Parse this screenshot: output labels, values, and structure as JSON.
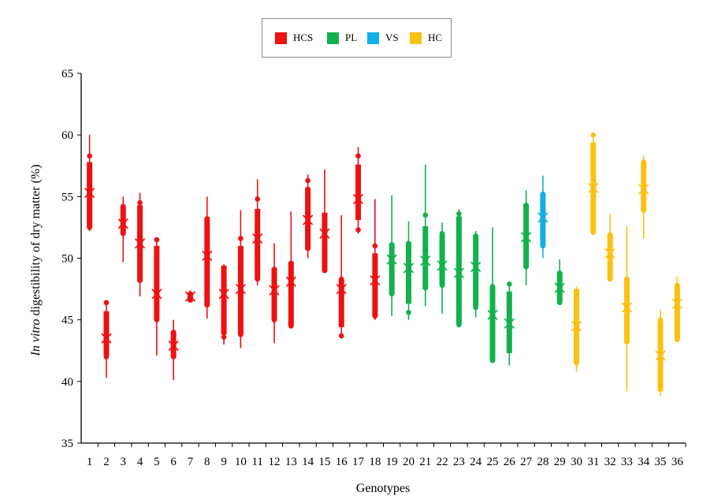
{
  "chart_data": {
    "type": "box",
    "xlabel": "Genotypes",
    "ylabel_italic": "In vitro",
    "ylabel_rest": " digestibility of dry matter (%)",
    "ylim": [
      35,
      65
    ],
    "yticks": [
      35,
      40,
      45,
      50,
      55,
      60,
      65
    ],
    "grid": false,
    "legend_position": "top-center",
    "groups": [
      {
        "name": "HCS",
        "color": "#ee1111"
      },
      {
        "name": "PL",
        "color": "#12b14c"
      },
      {
        "name": "VS",
        "color": "#11aee8"
      },
      {
        "name": "HC",
        "color": "#fbc112"
      }
    ],
    "genotypes": [
      {
        "label": "1",
        "group": "HCS",
        "min": 52.2,
        "q1": 52.5,
        "q3": 57.8,
        "max": 60.0,
        "mean": 55.3,
        "points": [
          52.5,
          54.2,
          55.8,
          58.3
        ]
      },
      {
        "label": "2",
        "group": "HCS",
        "min": 40.3,
        "q1": 42.1,
        "q3": 45.7,
        "max": 46.4,
        "mean": 43.5,
        "points": [
          42.0,
          43.2,
          44.6,
          46.4
        ]
      },
      {
        "label": "3",
        "group": "HCS",
        "min": 49.7,
        "q1": 52.0,
        "q3": 54.2,
        "max": 55.0,
        "mean": 52.8,
        "points": [
          52.0,
          52.6,
          53.6,
          54.2
        ]
      },
      {
        "label": "4",
        "group": "HCS",
        "min": 46.9,
        "q1": 48.1,
        "q3": 54.3,
        "max": 55.3,
        "mean": 51.2,
        "points": [
          48.2,
          50.1,
          52.1,
          53.3,
          54.5
        ]
      },
      {
        "label": "5",
        "group": "HCS",
        "min": 42.1,
        "q1": 45.0,
        "q3": 51.0,
        "max": 51.6,
        "mean": 47.1,
        "points": [
          45.0,
          45.7,
          49.5,
          51.5
        ]
      },
      {
        "label": "6",
        "group": "HCS",
        "min": 40.1,
        "q1": 42.0,
        "q3": 44.0,
        "max": 45.0,
        "mean": 42.9,
        "points": [
          42.0,
          43.3,
          44.0
        ]
      },
      {
        "label": "7",
        "group": "HCS",
        "min": 46.4,
        "q1": 46.5,
        "q3": 47.2,
        "max": 47.4,
        "mean": 46.9,
        "points": [
          46.6,
          47.1
        ]
      },
      {
        "label": "8",
        "group": "HCS",
        "min": 45.1,
        "q1": 46.1,
        "q3": 53.3,
        "max": 55.0,
        "mean": 50.2,
        "points": [
          46.2,
          49.8,
          52.0,
          53.2
        ]
      },
      {
        "label": "9",
        "group": "HCS",
        "min": 43.0,
        "q1": 43.8,
        "q3": 49.4,
        "max": 49.5,
        "mean": 47.1,
        "points": [
          43.6,
          45.4,
          48.1,
          49.2
        ]
      },
      {
        "label": "10",
        "group": "HCS",
        "min": 42.7,
        "q1": 43.8,
        "q3": 51.0,
        "max": 53.9,
        "mean": 47.5,
        "points": [
          43.8,
          45.2,
          46.5,
          48.8,
          51.6
        ]
      },
      {
        "label": "11",
        "group": "HCS",
        "min": 47.8,
        "q1": 48.3,
        "q3": 54.0,
        "max": 56.4,
        "mean": 51.6,
        "points": [
          48.3,
          50.3,
          51.1,
          52.7,
          54.8
        ]
      },
      {
        "label": "12",
        "group": "HCS",
        "min": 43.1,
        "q1": 45.0,
        "q3": 49.2,
        "max": 51.2,
        "mean": 47.4,
        "points": [
          45.0,
          46.8,
          48.7,
          49.1
        ]
      },
      {
        "label": "13",
        "group": "HCS",
        "min": 44.3,
        "q1": 44.5,
        "q3": 49.7,
        "max": 53.8,
        "mean": 48.1,
        "points": [
          44.5,
          46.3,
          48.1,
          49.6
        ]
      },
      {
        "label": "14",
        "group": "HCS",
        "min": 50.0,
        "q1": 50.7,
        "q3": 55.7,
        "max": 56.8,
        "mean": 53.1,
        "points": [
          50.8,
          52.4,
          54.0,
          55.6,
          56.3
        ]
      },
      {
        "label": "15",
        "group": "HCS",
        "min": 48.8,
        "q1": 49.0,
        "q3": 53.7,
        "max": 57.2,
        "mean": 52.0,
        "points": [
          49.0,
          50.6,
          52.4,
          53.5
        ]
      },
      {
        "label": "16",
        "group": "HCS",
        "min": 43.5,
        "q1": 44.4,
        "q3": 48.3,
        "max": 53.5,
        "mean": 47.5,
        "points": [
          43.7,
          46.5,
          48.3
        ]
      },
      {
        "label": "17",
        "group": "HCS",
        "min": 52.0,
        "q1": 53.1,
        "q3": 57.6,
        "max": 59.0,
        "mean": 54.8,
        "points": [
          52.3,
          53.8,
          55.1,
          58.3
        ]
      },
      {
        "label": "18",
        "group": "HCS",
        "min": 45.0,
        "q1": 45.3,
        "q3": 50.4,
        "max": 54.8,
        "mean": 48.2,
        "points": [
          45.3,
          46.4,
          48.7,
          51.0
        ]
      },
      {
        "label": "19",
        "group": "PL",
        "min": 45.3,
        "q1": 47.1,
        "q3": 51.2,
        "max": 55.1,
        "mean": 49.9,
        "points": [
          47.1,
          48.0,
          50.1,
          51.1
        ]
      },
      {
        "label": "20",
        "group": "PL",
        "min": 45.0,
        "q1": 46.3,
        "q3": 51.3,
        "max": 53.0,
        "mean": 49.2,
        "points": [
          45.6,
          48.3,
          50.3,
          51.2
        ]
      },
      {
        "label": "21",
        "group": "PL",
        "min": 46.1,
        "q1": 47.5,
        "q3": 52.6,
        "max": 57.6,
        "mean": 49.8,
        "points": [
          47.6,
          48.1,
          50.5,
          53.5
        ]
      },
      {
        "label": "22",
        "group": "PL",
        "min": 45.5,
        "q1": 47.8,
        "q3": 51.9,
        "max": 52.9,
        "mean": 49.4,
        "points": [
          47.8,
          48.6,
          50.7,
          52.0
        ]
      },
      {
        "label": "23",
        "group": "PL",
        "min": 44.5,
        "q1": 44.6,
        "q3": 53.4,
        "max": 54.0,
        "mean": 48.8,
        "points": [
          44.6,
          49.5,
          52.2,
          53.6
        ]
      },
      {
        "label": "24",
        "group": "PL",
        "min": 45.2,
        "q1": 46.1,
        "q3": 51.9,
        "max": 52.2,
        "mean": 49.3,
        "points": [
          46.0,
          48.0,
          51.8
        ]
      },
      {
        "label": "25",
        "group": "PL",
        "min": 41.5,
        "q1": 41.7,
        "q3": 47.7,
        "max": 52.5,
        "mean": 45.4,
        "points": [
          41.7,
          42.3,
          45.8,
          47.7
        ]
      },
      {
        "label": "26",
        "group": "PL",
        "min": 41.3,
        "q1": 42.3,
        "q3": 47.3,
        "max": 47.8,
        "mean": 44.7,
        "points": [
          42.5,
          43.8,
          47.9
        ]
      },
      {
        "label": "27",
        "group": "PL",
        "min": 47.8,
        "q1": 49.3,
        "q3": 54.4,
        "max": 55.5,
        "mean": 51.7,
        "points": [
          49.3,
          50.2,
          52.2,
          53.8,
          54.3
        ]
      },
      {
        "label": "28",
        "group": "VS",
        "min": 50.0,
        "q1": 51.0,
        "q3": 55.2,
        "max": 56.7,
        "mean": 53.3,
        "points": [
          51.0,
          52.4,
          53.6,
          55.2
        ]
      },
      {
        "label": "29",
        "group": "PL",
        "min": 46.2,
        "q1": 46.4,
        "q3": 48.8,
        "max": 49.9,
        "mean": 47.6,
        "points": [
          46.4,
          47.3,
          48.2,
          48.8
        ]
      },
      {
        "label": "30",
        "group": "HC",
        "min": 40.8,
        "q1": 41.5,
        "q3": 47.5,
        "max": 47.7,
        "mean": 44.5,
        "points": [
          41.5,
          42.2,
          43.5,
          45.4,
          47.3
        ]
      },
      {
        "label": "31",
        "group": "HC",
        "min": 52.0,
        "q1": 52.1,
        "q3": 59.4,
        "max": 60.0,
        "mean": 55.7,
        "points": [
          52.1,
          53.4,
          55.0,
          57.6,
          60.0
        ]
      },
      {
        "label": "32",
        "group": "HC",
        "min": 48.2,
        "q1": 48.3,
        "q3": 52.0,
        "max": 53.6,
        "mean": 50.4,
        "points": [
          48.3,
          49.5,
          51.0,
          51.9
        ]
      },
      {
        "label": "33",
        "group": "HC",
        "min": 39.2,
        "q1": 43.1,
        "q3": 48.4,
        "max": 52.6,
        "mean": 46.0,
        "points": [
          43.2,
          45.3,
          47.2,
          48.3
        ]
      },
      {
        "label": "34",
        "group": "HC",
        "min": 51.6,
        "q1": 53.8,
        "q3": 57.8,
        "max": 58.3,
        "mean": 55.6,
        "points": [
          53.9,
          54.6,
          56.4,
          57.8
        ]
      },
      {
        "label": "35",
        "group": "HC",
        "min": 38.8,
        "q1": 39.2,
        "q3": 44.9,
        "max": 45.8,
        "mean": 42.1,
        "points": [
          39.4,
          40.2,
          41.4,
          42.7,
          45.0
        ]
      },
      {
        "label": "36",
        "group": "HC",
        "min": 43.3,
        "q1": 43.4,
        "q3": 47.8,
        "max": 48.5,
        "mean": 46.3,
        "points": [
          43.4,
          45.4,
          46.9,
          47.8
        ]
      }
    ]
  }
}
